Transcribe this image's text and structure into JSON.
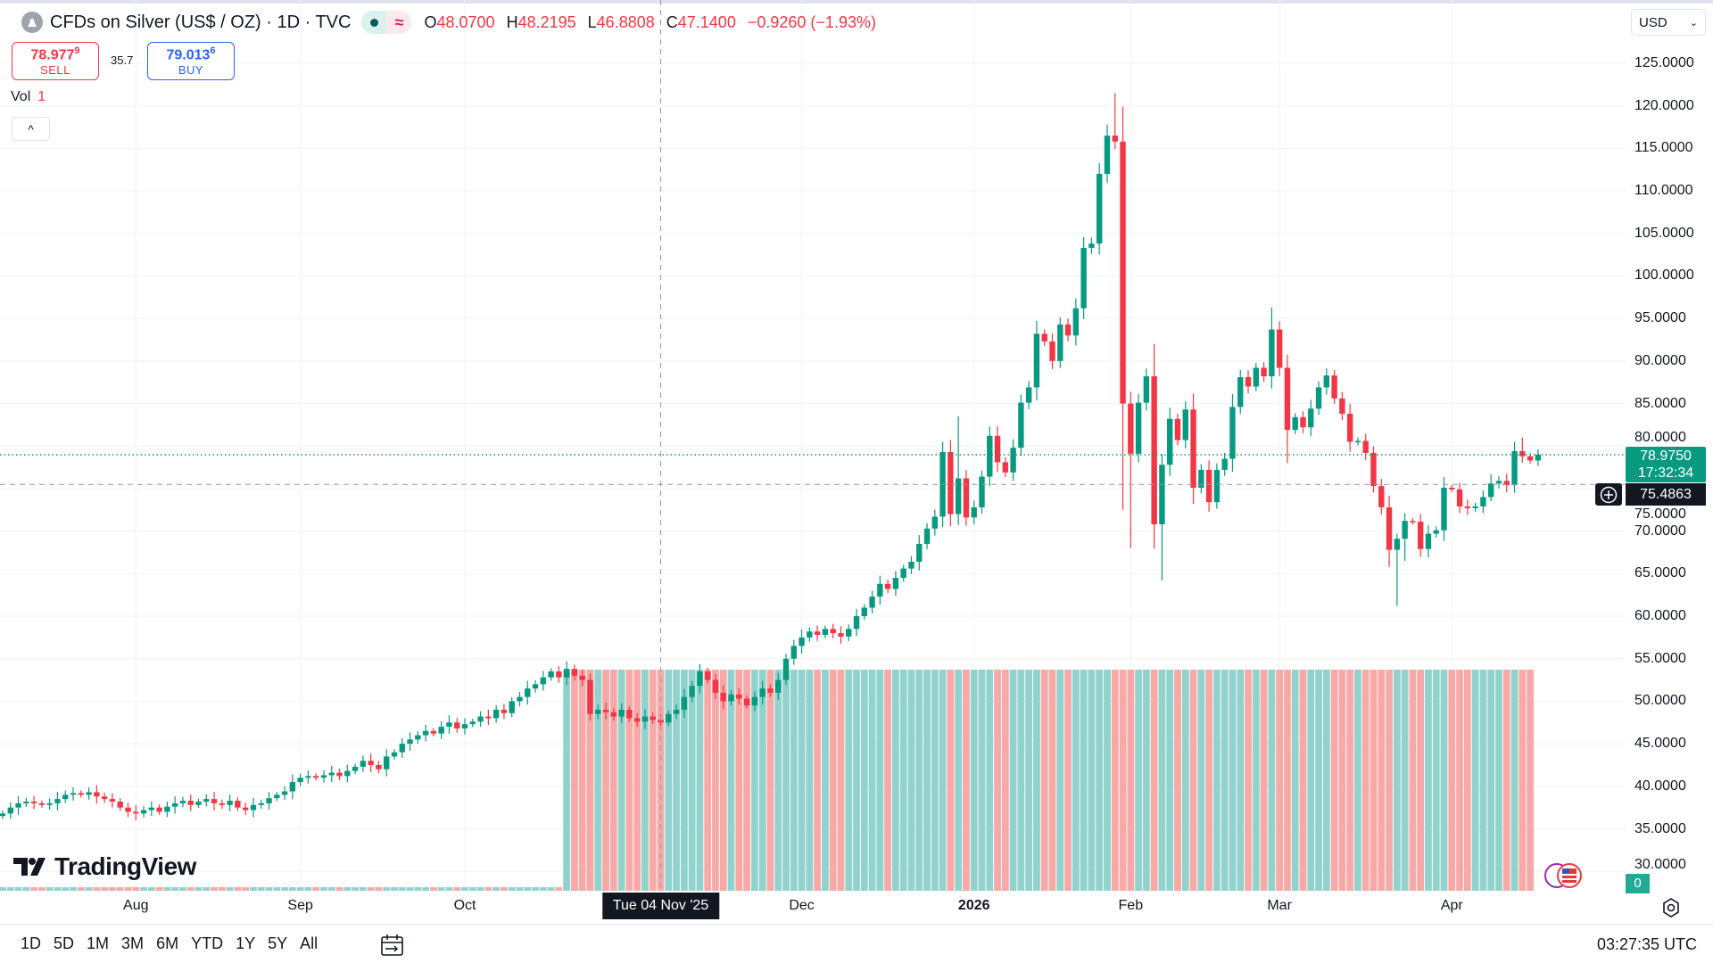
{
  "header": {
    "title": "CFDs on Silver (US$ / OZ) · 1D · TVC",
    "market_status_icon": "market-open-dot",
    "delay_icon": "approx-icon",
    "delay_symbol": "≈",
    "ohlc": {
      "o_label": "O",
      "o": "48.0700",
      "h_label": "H",
      "h": "48.2195",
      "l_label": "L",
      "l": "46.8808",
      "c_label": "C",
      "c": "47.1400",
      "change": "−0.9260 (−1.93%)"
    }
  },
  "trade": {
    "sell_price_main": "78.977",
    "sell_price_sup": "9",
    "sell_label": "SELL",
    "spread": "35.7",
    "buy_price_main": "79.013",
    "buy_price_sup": "6",
    "buy_label": "BUY"
  },
  "volume_legend": {
    "label": "Vol",
    "value": "1"
  },
  "collapse_symbol": "^",
  "currency": {
    "selected": "USD"
  },
  "price_axis": {
    "ticks": [
      "125.0000",
      "120.0000",
      "115.0000",
      "110.0000",
      "105.0000",
      "100.0000",
      "95.0000",
      "90.0000",
      "85.0000",
      "80.0000",
      "75.0000",
      "70.0000",
      "65.0000",
      "60.0000",
      "55.0000",
      "50.0000",
      "45.0000",
      "40.0000",
      "35.0000",
      "30.0000"
    ],
    "tick_values": [
      125,
      120,
      115,
      110,
      105,
      100,
      95,
      90,
      85,
      80,
      75,
      70,
      65,
      60,
      55,
      50,
      45,
      40,
      35,
      30
    ],
    "current_price": "78.9750",
    "current_price_value": 78.975,
    "countdown": "17:32:34",
    "crosshair_price": "75.4863",
    "crosshair_price_value": 75.4863,
    "volume_value": "0"
  },
  "time_axis": {
    "labels": [
      {
        "label": "Aug",
        "index": 17,
        "bold": false
      },
      {
        "label": "Sep",
        "index": 38,
        "bold": false
      },
      {
        "label": "Oct",
        "index": 59,
        "bold": false
      },
      {
        "label": "Dec",
        "index": 102,
        "bold": false
      },
      {
        "label": "2026",
        "index": 124,
        "bold": true
      },
      {
        "label": "Feb",
        "index": 144,
        "bold": false
      },
      {
        "label": "Mar",
        "index": 163,
        "bold": false
      },
      {
        "label": "Apr",
        "index": 185,
        "bold": false
      }
    ],
    "crosshair_label": "Tue 04 Nov '25",
    "crosshair_index": 84
  },
  "ranges": [
    "1D",
    "5D",
    "1M",
    "3M",
    "6M",
    "YTD",
    "1Y",
    "5Y",
    "All"
  ],
  "clock": "03:27:35 UTC",
  "logo": "TradingView",
  "colors": {
    "up": "#089981",
    "down": "#f23645",
    "vol_up": "#92d2cc",
    "vol_down": "#f7a9a7",
    "grid": "#f0f3fa"
  },
  "chart_data": {
    "type": "candlestick",
    "interval": "1D",
    "closes": [
      36.8,
      37.5,
      38,
      38.2,
      38,
      37.8,
      38,
      38.5,
      39,
      39.2,
      39,
      39.3,
      38.8,
      38.5,
      38.2,
      37.5,
      37,
      36.8,
      37.2,
      37.5,
      37,
      37.6,
      38,
      38.3,
      37.8,
      38.2,
      38.5,
      38,
      37.8,
      38.3,
      37.5,
      37.2,
      37.8,
      38,
      38.6,
      39,
      39.4,
      40.5,
      41,
      41.2,
      41,
      41.3,
      41.6,
      41.2,
      41.8,
      42.3,
      43,
      42.5,
      42,
      43.5,
      44,
      45,
      45.5,
      46,
      46.5,
      46.2,
      47,
      47.5,
      46.8,
      47.3,
      47.6,
      48.2,
      48,
      49,
      48.6,
      50,
      50.5,
      51.5,
      52,
      52.8,
      53.5,
      52.8,
      53.8,
      53,
      52.5,
      48.5,
      49,
      48.7,
      48.2,
      49,
      48,
      47.6,
      48.2,
      47.8,
      47.5,
      48.5,
      49,
      50.5,
      51.8,
      53.5,
      52.5,
      51,
      50,
      50.8,
      50.3,
      49.5,
      50.5,
      51.5,
      51,
      52.5,
      55,
      56.5,
      57.5,
      58.2,
      57.8,
      58.5,
      58,
      57.6,
      58.5,
      60,
      61,
      62.3,
      63.8,
      63.2,
      64.5,
      65.6,
      66.4,
      68.5,
      70.3,
      71.7,
      79.3,
      72.0,
      76.2,
      71.6,
      72.8,
      76.4,
      81.2,
      78.1,
      76.9,
      79.8,
      85.1,
      86.9,
      93.2,
      92.3,
      90.0,
      94.3,
      93.0,
      96.2,
      103.3,
      103.8,
      112.0,
      116.5,
      115.8,
      85.0,
      79.1,
      85.1,
      88.2,
      70.8,
      77.8,
      83.2,
      80.7,
      84.3,
      75.1,
      77.2,
      73.4,
      77.2,
      78.5,
      84.6,
      88.1,
      87.0,
      89.2,
      88.2,
      93.7,
      89.2,
      81.9,
      83.4,
      82.2,
      84.4,
      86.9,
      88.3,
      85.6,
      83.8,
      80.5,
      80.6,
      79.2,
      75.3,
      72.8,
      67.8,
      69.1,
      71.2,
      71.1,
      67.9,
      69.7,
      70.1,
      75.1,
      74.9,
      72.9,
      72.7,
      72.9,
      74.0,
      75.6,
      75.9,
      75.4,
      79.4,
      78.8,
      78.3,
      79.0
    ],
    "first_open": 36.5,
    "wick_extremes": [
      {
        "index": 122,
        "high": 83.5
      },
      {
        "index": 141,
        "high": 117.8
      },
      {
        "index": 142,
        "high": 121.5
      },
      {
        "index": 143,
        "low": 72.5
      },
      {
        "index": 144,
        "low": 68
      },
      {
        "index": 147,
        "high": 92
      },
      {
        "index": 148,
        "low": 64.2
      },
      {
        "index": 162,
        "high": 96.3
      },
      {
        "index": 164,
        "low": 78
      },
      {
        "index": 177,
        "low": 65.8
      },
      {
        "index": 178,
        "low": 61.2
      },
      {
        "index": 179,
        "low": 66.5
      },
      {
        "index": 190,
        "high": 76.7
      },
      {
        "index": 193,
        "high": 80.5
      },
      {
        "index": 194,
        "high": 81
      }
    ],
    "volume_full_from_index": 72,
    "volume_to_index": 195,
    "ylim": [
      28,
      128
    ]
  }
}
